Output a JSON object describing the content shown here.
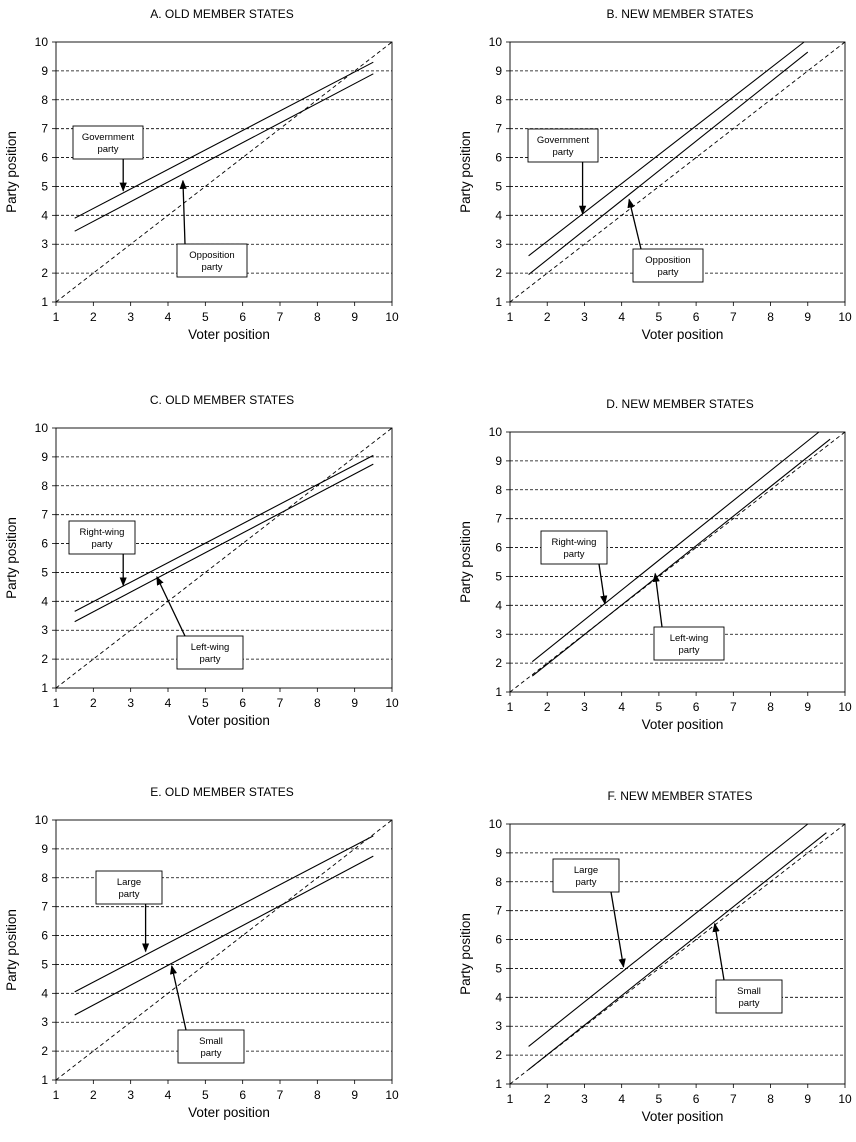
{
  "chart_data": [
    {
      "type": "line",
      "title": "A. OLD MEMBER STATES",
      "xlabel": "Voter position",
      "ylabel": "Party position",
      "xlim": [
        1,
        10
      ],
      "ylim": [
        1,
        10
      ],
      "xticks": [
        "1",
        "2",
        "3",
        "4",
        "5",
        "6",
        "7",
        "8",
        "9",
        "10"
      ],
      "yticks": [
        "1",
        "2",
        "3",
        "4",
        "5",
        "6",
        "7",
        "8",
        "9",
        "10"
      ],
      "grid": "horizontal dashed",
      "series": [
        {
          "points": [
            [
              1.5,
              3.9
            ],
            [
              9.5,
              9.3
            ]
          ]
        },
        {
          "points": [
            [
              1.5,
              3.45
            ],
            [
              9.5,
              8.9
            ]
          ]
        },
        {
          "style": "dashed",
          "points": [
            [
              1,
              1
            ],
            [
              10,
              10
            ]
          ]
        }
      ],
      "annotations": [
        {
          "lines": [
            "Government",
            "party"
          ],
          "points_to": [
            2.8,
            4.85
          ]
        },
        {
          "lines": [
            "Opposition",
            "party"
          ],
          "points_to": [
            4.4,
            5.2
          ]
        }
      ]
    },
    {
      "type": "line",
      "title": "B. NEW MEMBER STATES",
      "xlabel": "Voter position",
      "ylabel": "Party position",
      "xlim": [
        1,
        10
      ],
      "ylim": [
        1,
        10
      ],
      "xticks": [
        "1",
        "2",
        "3",
        "4",
        "5",
        "6",
        "7",
        "8",
        "9",
        "10"
      ],
      "yticks": [
        "1",
        "2",
        "3",
        "4",
        "5",
        "6",
        "7",
        "8",
        "9",
        "10"
      ],
      "grid": "horizontal dashed",
      "series": [
        {
          "points": [
            [
              1.5,
              2.6
            ],
            [
              8.9,
              10.0
            ]
          ]
        },
        {
          "points": [
            [
              1.5,
              1.95
            ],
            [
              9.0,
              9.65
            ]
          ]
        },
        {
          "style": "dashed",
          "points": [
            [
              1,
              1
            ],
            [
              10,
              10
            ]
          ]
        }
      ],
      "annotations": [
        {
          "lines": [
            "Government",
            "party"
          ],
          "points_to": [
            2.95,
            4.05
          ]
        },
        {
          "lines": [
            "Opposition",
            "party"
          ],
          "points_to": [
            4.2,
            4.55
          ]
        }
      ]
    },
    {
      "type": "line",
      "title": "C. OLD MEMBER STATES",
      "xlabel": "Voter position",
      "ylabel": "Party position",
      "xlim": [
        1,
        10
      ],
      "ylim": [
        1,
        10
      ],
      "xticks": [
        "1",
        "2",
        "3",
        "4",
        "5",
        "6",
        "7",
        "8",
        "9",
        "10"
      ],
      "yticks": [
        "1",
        "2",
        "3",
        "4",
        "5",
        "6",
        "7",
        "8",
        "9",
        "10"
      ],
      "grid": "horizontal dashed",
      "series": [
        {
          "points": [
            [
              1.5,
              3.65
            ],
            [
              9.5,
              9.05
            ]
          ]
        },
        {
          "points": [
            [
              1.5,
              3.3
            ],
            [
              9.5,
              8.75
            ]
          ]
        },
        {
          "style": "dashed",
          "points": [
            [
              1,
              1
            ],
            [
              10,
              10
            ]
          ]
        }
      ],
      "annotations": [
        {
          "lines": [
            "Right-wing",
            "party"
          ],
          "points_to": [
            2.8,
            4.55
          ]
        },
        {
          "lines": [
            "Left-wing",
            "party"
          ],
          "points_to": [
            3.7,
            4.85
          ]
        }
      ]
    },
    {
      "type": "line",
      "title": "D. NEW MEMBER STATES",
      "xlabel": "Voter position",
      "ylabel": "Party position",
      "xlim": [
        1,
        10
      ],
      "ylim": [
        1,
        10
      ],
      "xticks": [
        "1",
        "2",
        "3",
        "4",
        "5",
        "6",
        "7",
        "8",
        "9",
        "10"
      ],
      "yticks": [
        "1",
        "2",
        "3",
        "4",
        "5",
        "6",
        "7",
        "8",
        "9",
        "10"
      ],
      "grid": "horizontal dashed",
      "series": [
        {
          "points": [
            [
              1.6,
              2.05
            ],
            [
              9.3,
              10.0
            ]
          ]
        },
        {
          "points": [
            [
              1.6,
              1.55
            ],
            [
              9.6,
              9.75
            ]
          ]
        },
        {
          "style": "dashed",
          "points": [
            [
              1,
              1
            ],
            [
              10,
              10
            ]
          ]
        }
      ],
      "annotations": [
        {
          "lines": [
            "Right-wing",
            "party"
          ],
          "points_to": [
            3.55,
            4.05
          ]
        },
        {
          "lines": [
            "Left-wing",
            "party"
          ],
          "points_to": [
            4.9,
            5.1
          ]
        }
      ]
    },
    {
      "type": "line",
      "title": "E. OLD MEMBER STATES",
      "xlabel": "Voter position",
      "ylabel": "Party position",
      "xlim": [
        1,
        10
      ],
      "ylim": [
        1,
        10
      ],
      "xticks": [
        "1",
        "2",
        "3",
        "4",
        "5",
        "6",
        "7",
        "8",
        "9",
        "10"
      ],
      "yticks": [
        "1",
        "2",
        "3",
        "4",
        "5",
        "6",
        "7",
        "8",
        "9",
        "10"
      ],
      "grid": "horizontal dashed",
      "series": [
        {
          "points": [
            [
              1.5,
              4.05
            ],
            [
              9.5,
              9.45
            ]
          ]
        },
        {
          "points": [
            [
              1.5,
              3.25
            ],
            [
              9.5,
              8.75
            ]
          ]
        },
        {
          "style": "dashed",
          "points": [
            [
              1,
              1
            ],
            [
              10,
              10
            ]
          ]
        }
      ],
      "annotations": [
        {
          "lines": [
            "Large",
            "party"
          ],
          "points_to": [
            3.4,
            5.45
          ]
        },
        {
          "lines": [
            "Small",
            "party"
          ],
          "points_to": [
            4.1,
            4.95
          ]
        }
      ]
    },
    {
      "type": "line",
      "title": "F. NEW MEMBER STATES",
      "xlabel": "Voter position",
      "ylabel": "Party position",
      "xlim": [
        1,
        10
      ],
      "ylim": [
        1,
        10
      ],
      "xticks": [
        "1",
        "2",
        "3",
        "4",
        "5",
        "6",
        "7",
        "8",
        "9",
        "10"
      ],
      "yticks": [
        "1",
        "2",
        "3",
        "4",
        "5",
        "6",
        "7",
        "8",
        "9",
        "10"
      ],
      "grid": "horizontal dashed",
      "series": [
        {
          "points": [
            [
              1.5,
              2.3
            ],
            [
              9.0,
              10.0
            ]
          ]
        },
        {
          "points": [
            [
              1.5,
              1.5
            ],
            [
              9.5,
              9.7
            ]
          ]
        },
        {
          "style": "dashed",
          "points": [
            [
              1,
              1
            ],
            [
              10,
              10
            ]
          ]
        }
      ],
      "annotations": [
        {
          "lines": [
            "Large",
            "party"
          ],
          "points_to": [
            4.05,
            5.05
          ]
        },
        {
          "lines": [
            "Small",
            "party"
          ],
          "points_to": [
            6.5,
            6.55
          ]
        }
      ]
    }
  ]
}
